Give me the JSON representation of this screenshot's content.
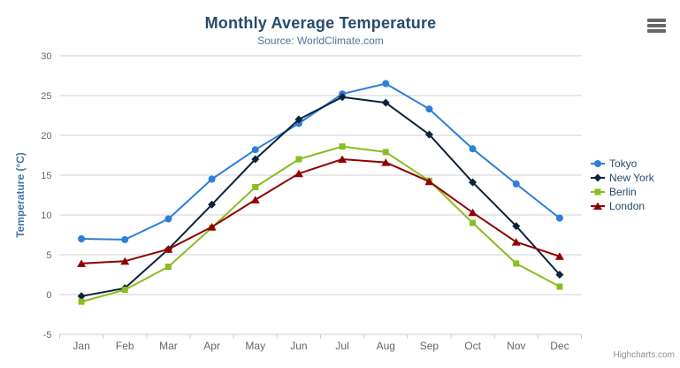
{
  "credits": "Highcharts.com",
  "icons": {
    "context_menu": "hamburger-icon"
  },
  "colors": {
    "title": "#274b6d",
    "subtitle": "#4d759e",
    "yaxis_title": "#4572a7",
    "axis_labels": "#666666",
    "gridline": "#d2d2d2",
    "xaxis_line": "#c0d0e0",
    "legend_text": "#274b6d",
    "credits_text": "#909090",
    "burger": "#666666",
    "background": "#ffffff"
  },
  "chart_data": {
    "type": "line",
    "title": "Monthly Average Temperature",
    "subtitle": "Source: WorldClimate.com",
    "categories": [
      "Jan",
      "Feb",
      "Mar",
      "Apr",
      "May",
      "Jun",
      "Jul",
      "Aug",
      "Sep",
      "Oct",
      "Nov",
      "Dec"
    ],
    "xlabel": "",
    "ylabel": "Temperature (°C)",
    "ylim": [
      -5,
      30
    ],
    "yticks": [
      -5,
      0,
      5,
      10,
      15,
      20,
      25,
      30
    ],
    "grid": true,
    "legend_position": "right",
    "series": [
      {
        "name": "Tokyo",
        "marker": "circle",
        "color": "#2f7ed8",
        "values": [
          7.0,
          6.9,
          9.5,
          14.5,
          18.2,
          21.5,
          25.2,
          26.5,
          23.3,
          18.3,
          13.9,
          9.6
        ]
      },
      {
        "name": "New York",
        "marker": "diamond",
        "color": "#0d233a",
        "values": [
          -0.2,
          0.8,
          5.7,
          11.3,
          17.0,
          22.0,
          24.8,
          24.1,
          20.1,
          14.1,
          8.6,
          2.5
        ]
      },
      {
        "name": "Berlin",
        "marker": "square",
        "color": "#8bbc21",
        "values": [
          -0.9,
          0.6,
          3.5,
          8.4,
          13.5,
          17.0,
          18.6,
          17.9,
          14.3,
          9.0,
          3.9,
          1.0
        ]
      },
      {
        "name": "London",
        "marker": "triangle",
        "color": "#910000",
        "values": [
          3.9,
          4.2,
          5.7,
          8.5,
          11.9,
          15.2,
          17.0,
          16.6,
          14.2,
          10.3,
          6.6,
          4.8
        ]
      }
    ]
  }
}
